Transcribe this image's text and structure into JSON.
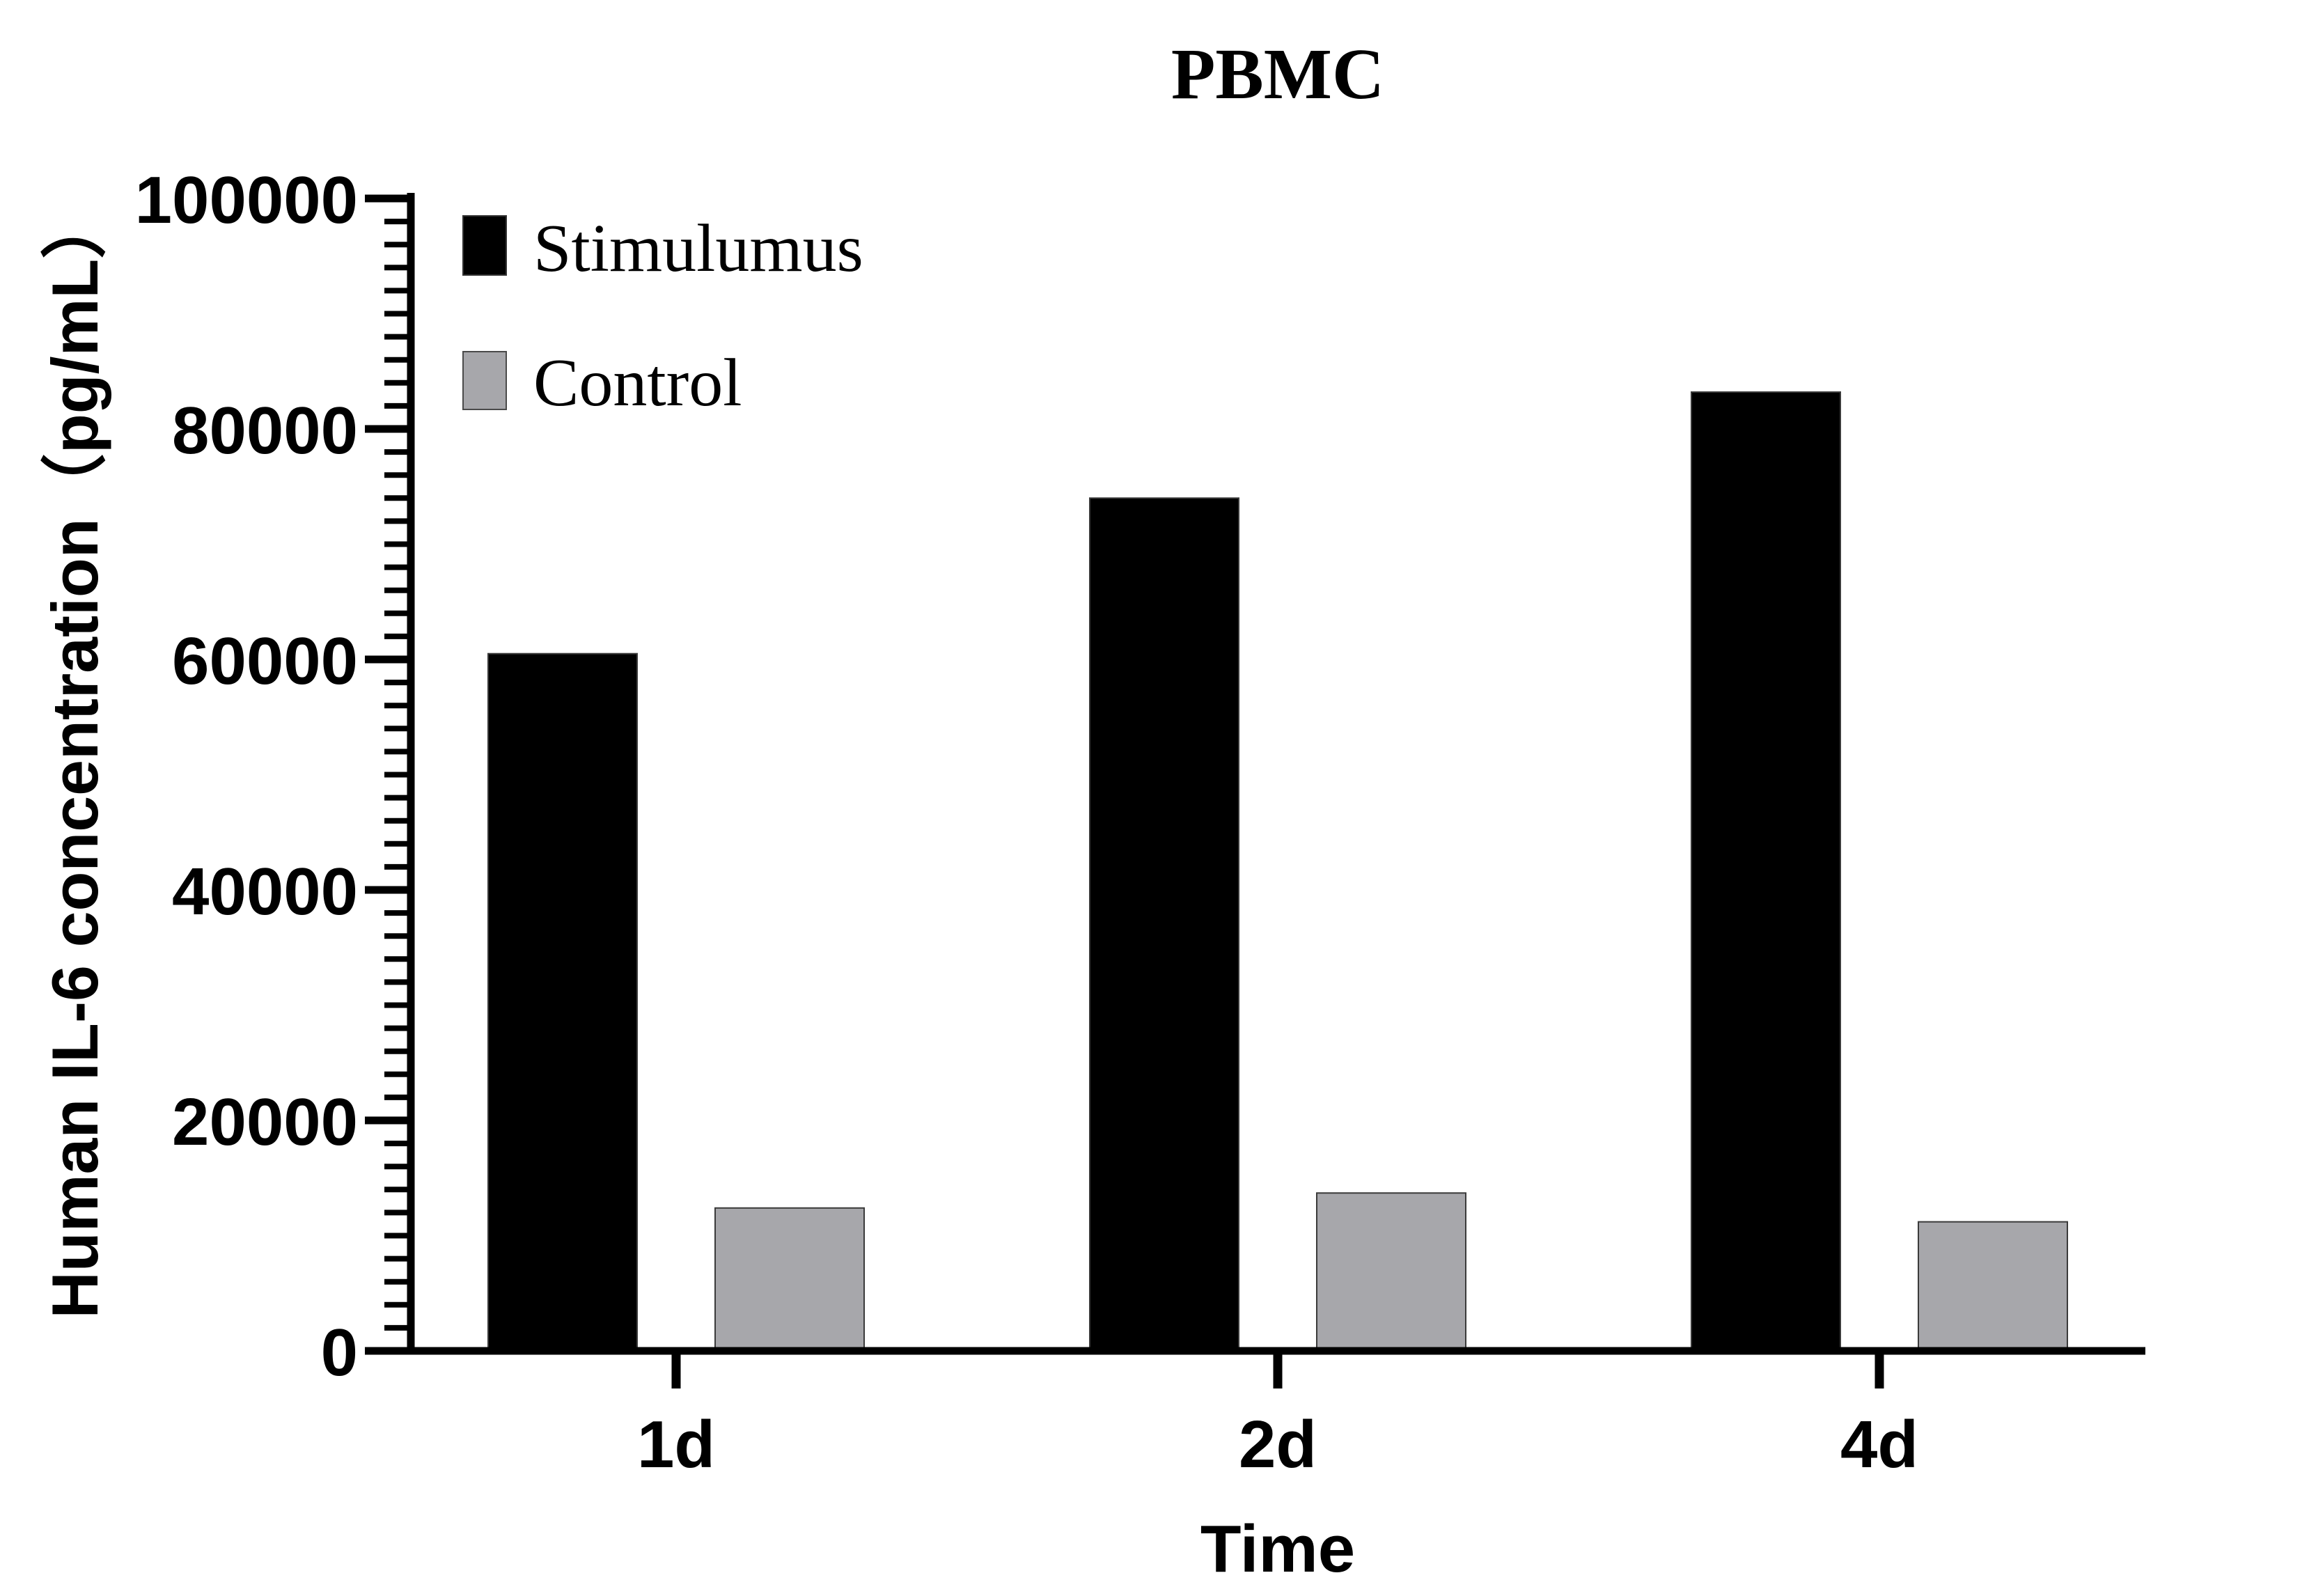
{
  "chart_data": {
    "type": "bar",
    "title": "PBMC",
    "xlabel": "Time",
    "ylabel": "Human IL-6 concentration（pg/mL）",
    "categories": [
      "1d",
      "2d",
      "4d"
    ],
    "series": [
      {
        "name": "Stimulumus",
        "color": "#000000",
        "values": [
          60500,
          74000,
          83200
        ]
      },
      {
        "name": "Control",
        "color": "#A7A7AB",
        "values": [
          12400,
          13700,
          11200
        ]
      }
    ],
    "ylim": [
      0,
      100000
    ],
    "yticks": [
      "0",
      "20000",
      "40000",
      "60000",
      "80000",
      "100000"
    ],
    "minor_tick_step": 2000,
    "legend": "top-left",
    "grid": false
  }
}
